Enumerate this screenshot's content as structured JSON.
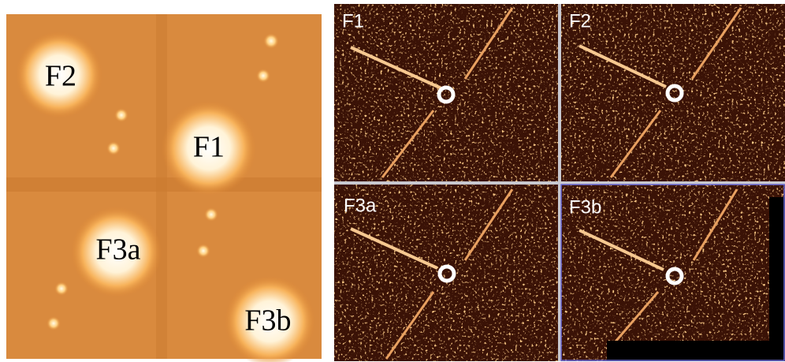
{
  "left_panel": {
    "labels": [
      "F2",
      "F1",
      "F3a",
      "F3b"
    ]
  },
  "right_panels": [
    {
      "label": "F1"
    },
    {
      "label": "F2"
    },
    {
      "label": "F3a"
    },
    {
      "label": "F3b"
    }
  ]
}
